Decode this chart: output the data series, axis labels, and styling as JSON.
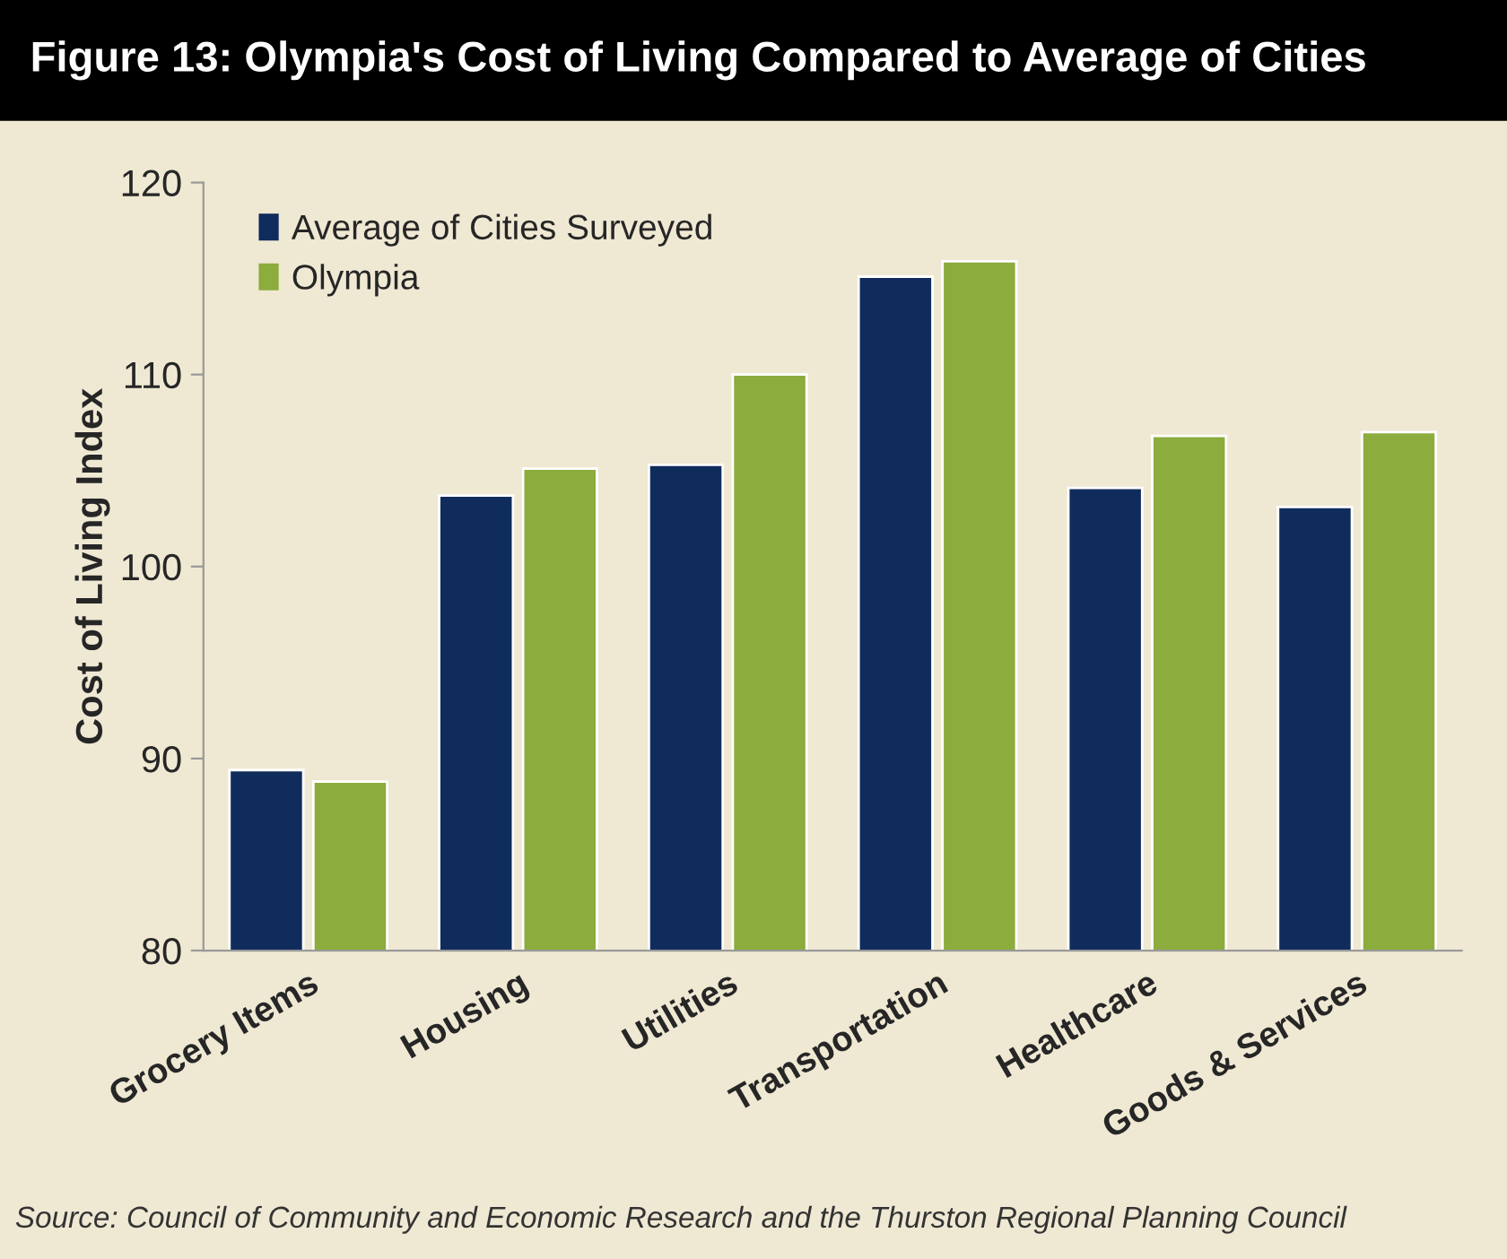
{
  "chart_data": {
    "type": "bar",
    "title": "Figure 13: Olympia's Cost of Living Compared to Average of Cities",
    "ylabel": "Cost of Living Index",
    "categories": [
      "Grocery Items",
      "Housing",
      "Utilities",
      "Transportation",
      "Healthcare",
      "Goods & Services"
    ],
    "series": [
      {
        "name": "Average of Cities Surveyed",
        "color": "#0f2c5c",
        "values": [
          89.4,
          103.7,
          105.3,
          115.1,
          104.1,
          103.1
        ]
      },
      {
        "name": "Olympia",
        "color": "#8cac3e",
        "values": [
          88.8,
          105.1,
          110.0,
          115.9,
          106.8,
          107.0
        ]
      }
    ],
    "ylim": [
      80,
      120
    ],
    "yticks": [
      80,
      90,
      100,
      110,
      120
    ],
    "grid": false,
    "legend": "top left",
    "annotations": [
      "Source: Council of Community and Economic Research and the Thurston Regional Planning Council"
    ]
  }
}
